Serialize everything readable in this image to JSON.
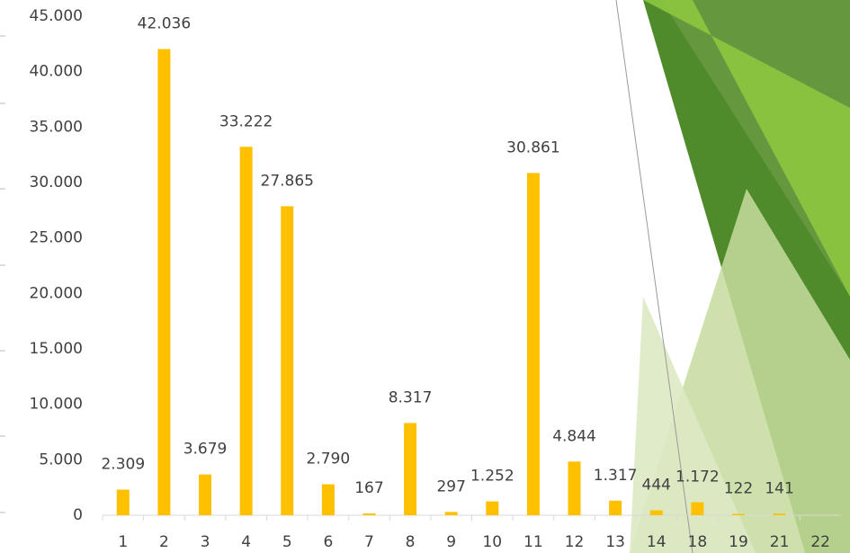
{
  "chart_data": {
    "type": "bar",
    "categories": [
      "1",
      "2",
      "3",
      "4",
      "5",
      "6",
      "7",
      "8",
      "9",
      "10",
      "11",
      "12",
      "13",
      "14",
      "18",
      "19",
      "21",
      "22"
    ],
    "values": [
      2309,
      42036,
      3679,
      33222,
      27865,
      2790,
      167,
      8317,
      297,
      1252,
      30861,
      4844,
      1317,
      444,
      1172,
      122,
      141,
      null
    ],
    "value_labels": [
      "2.309",
      "42.036",
      "3.679",
      "33.222",
      "27.865",
      "2.790",
      "167",
      "8.317",
      "297",
      "1.252",
      "30.861",
      "4.844",
      "1.317",
      "444",
      "1.172",
      "122",
      "141",
      null
    ],
    "color": "#FFC000",
    "ylim": [
      0,
      45000
    ],
    "yticks": [
      0,
      {
        "value": 5000,
        "label": "5.000"
      },
      {
        "value": 10000,
        "label": "10.000"
      },
      {
        "value": 15000,
        "label": "15.000"
      },
      {
        "value": 20000,
        "label": "20.000"
      },
      {
        "value": 25000,
        "label": "25.000"
      },
      {
        "value": 30000,
        "label": "30.000"
      },
      {
        "value": 35000,
        "label": "35.000"
      },
      {
        "value": 40000,
        "label": "40.000"
      },
      {
        "value": 45000,
        "label": "45.000"
      }
    ],
    "grid": false
  }
}
